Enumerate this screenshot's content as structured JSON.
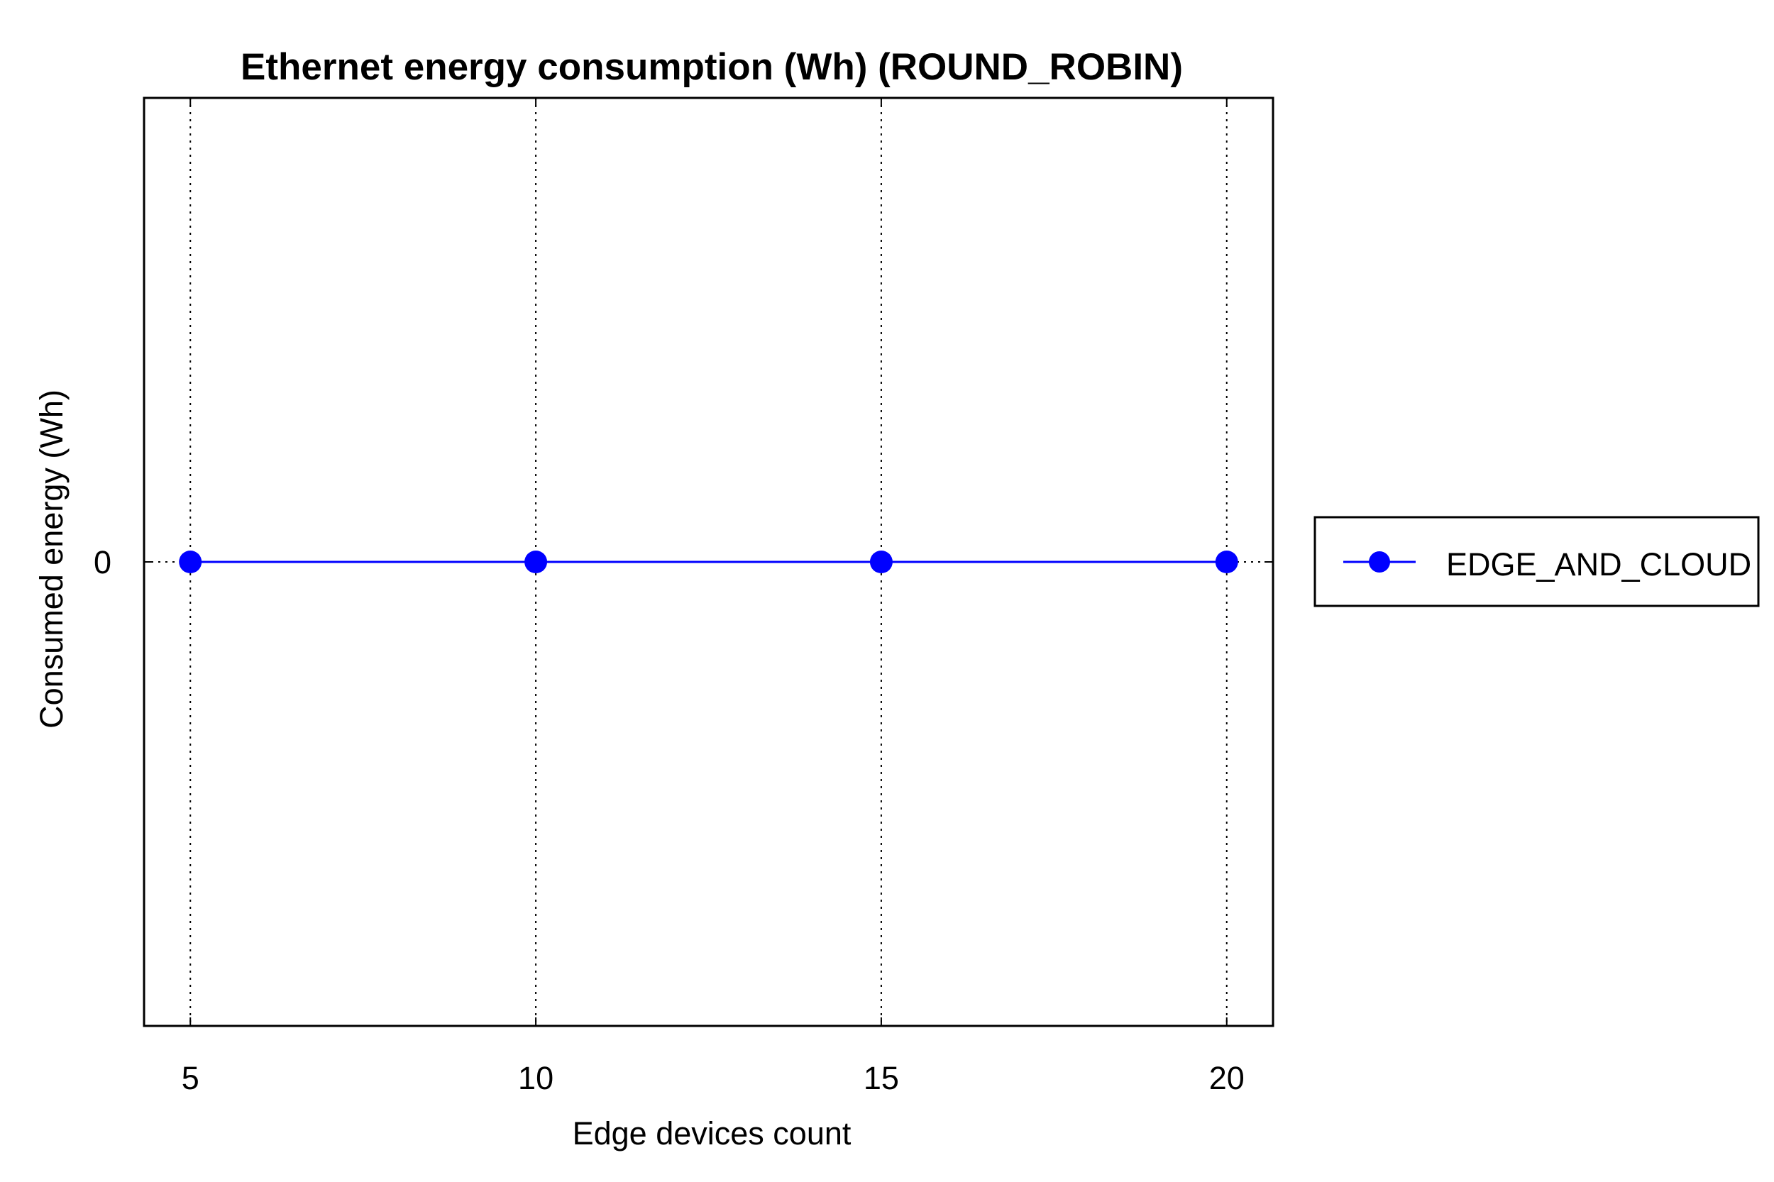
{
  "chart_data": {
    "type": "line",
    "title": "Ethernet energy consumption (Wh) (ROUND_ROBIN)",
    "xlabel": "Edge devices count",
    "ylabel": "Consumed energy (Wh)",
    "x": [
      5,
      10,
      15,
      20
    ],
    "xticks": [
      "5",
      "10",
      "15",
      "20"
    ],
    "yticks": [
      {
        "value": 0,
        "label": "0"
      }
    ],
    "xlim": [
      4.33,
      20.67
    ],
    "ylim": [
      -1,
      1
    ],
    "grid": "vertical dotted",
    "legend_position": "right",
    "series": [
      {
        "name": "EDGE_AND_CLOUD",
        "values": [
          0,
          0,
          0,
          0
        ],
        "color": "#0000ff",
        "marker": "circle"
      }
    ]
  }
}
